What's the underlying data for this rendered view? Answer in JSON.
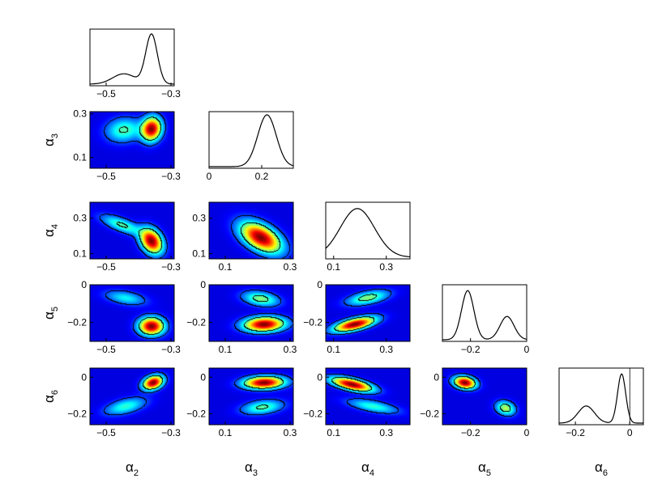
{
  "params": [
    {
      "letter": "α",
      "sub": "2"
    },
    {
      "letter": "α",
      "sub": "3"
    },
    {
      "letter": "α",
      "sub": "4"
    },
    {
      "letter": "α",
      "sub": "5"
    },
    {
      "letter": "α",
      "sub": "6"
    }
  ],
  "chart_data": {
    "type": "corner-plot",
    "description_of_panels": "lower-triangle 2D posterior density heatmaps with 1- and 2-sigma contours; diagonal 1D marginal densities",
    "colormap": [
      "#00008f",
      "#0000ff",
      "#00ffff",
      "#ffff00",
      "#ff0000",
      "#800000"
    ],
    "axes": [
      {
        "name": "α2",
        "range": [
          -0.55,
          -0.29
        ],
        "ticks": [
          -0.5,
          -0.3
        ],
        "tick_labels": [
          "−0.5",
          "−0.3"
        ]
      },
      {
        "name": "α3",
        "range": [
          0.05,
          0.31
        ],
        "ticks": [
          0.1,
          0.3
        ],
        "tick_labels": [
          "0.1",
          "0.3"
        ],
        "diag_range": [
          0.0,
          0.32
        ],
        "diag_ticks": [
          0,
          0.2
        ],
        "diag_tick_labels": [
          "0",
          "0.2"
        ]
      },
      {
        "name": "α4",
        "range": [
          0.07,
          0.39
        ],
        "ticks": [
          0.1,
          0.3
        ],
        "tick_labels": [
          "0.1",
          "0.3"
        ]
      },
      {
        "name": "α5",
        "range": [
          -0.3,
          0.0
        ],
        "ticks": [
          -0.2,
          0
        ],
        "tick_labels": [
          "−0.2",
          "0"
        ]
      },
      {
        "name": "α6",
        "range": [
          -0.26,
          0.05
        ],
        "ticks": [
          -0.2,
          0
        ],
        "tick_labels": [
          "−0.2",
          "0"
        ]
      }
    ],
    "marginals": [
      {
        "param": "α2",
        "modes": [
          {
            "x": -0.36,
            "height": 0.96,
            "width": 0.018
          },
          {
            "x": -0.445,
            "height": 0.2,
            "width": 0.035
          }
        ],
        "vline": null
      },
      {
        "param": "α3",
        "modes": [
          {
            "x": 0.22,
            "height": 1.0,
            "width": 0.035
          }
        ],
        "vline": null
      },
      {
        "param": "α4",
        "modes": [
          {
            "x": 0.19,
            "height": 0.94,
            "width": 0.065
          }
        ],
        "vline": null
      },
      {
        "param": "α5",
        "modes": [
          {
            "x": -0.21,
            "height": 0.95,
            "width": 0.022
          },
          {
            "x": -0.07,
            "height": 0.45,
            "width": 0.025
          }
        ],
        "vline": null
      },
      {
        "param": "α6",
        "modes": [
          {
            "x": -0.03,
            "height": 0.95,
            "width": 0.015
          },
          {
            "x": -0.16,
            "height": 0.33,
            "width": 0.03
          }
        ],
        "vline": 0.0
      }
    ],
    "joint_modes": [
      {
        "x": "α2",
        "y": "α3",
        "modes": [
          {
            "mx": -0.36,
            "my": 0.23,
            "sx": 0.02,
            "sy": 0.035,
            "rho": 0.1,
            "w": 1.0
          },
          {
            "mx": -0.445,
            "my": 0.225,
            "sx": 0.035,
            "sy": 0.035,
            "rho": 0.1,
            "w": 0.35
          }
        ]
      },
      {
        "x": "α2",
        "y": "α4",
        "modes": [
          {
            "mx": -0.36,
            "my": 0.17,
            "sx": 0.022,
            "sy": 0.045,
            "rho": -0.3,
            "w": 1.0
          },
          {
            "mx": -0.45,
            "my": 0.26,
            "sx": 0.04,
            "sy": 0.035,
            "rho": -0.7,
            "w": 0.35
          }
        ]
      },
      {
        "x": "α2",
        "y": "α5",
        "modes": [
          {
            "mx": -0.36,
            "my": -0.22,
            "sx": 0.025,
            "sy": 0.03,
            "rho": 0.0,
            "w": 1.0
          },
          {
            "mx": -0.44,
            "my": -0.07,
            "sx": 0.04,
            "sy": 0.025,
            "rho": -0.4,
            "w": 0.25
          }
        ]
      },
      {
        "x": "α2",
        "y": "α6",
        "modes": [
          {
            "mx": -0.355,
            "my": -0.03,
            "sx": 0.02,
            "sy": 0.025,
            "rho": 0.3,
            "w": 1.0
          },
          {
            "mx": -0.44,
            "my": -0.16,
            "sx": 0.04,
            "sy": 0.03,
            "rho": 0.5,
            "w": 0.3
          }
        ]
      },
      {
        "x": "α3",
        "y": "α4",
        "modes": [
          {
            "mx": 0.21,
            "my": 0.19,
            "sx": 0.04,
            "sy": 0.055,
            "rho": -0.5,
            "w": 1.0
          }
        ]
      },
      {
        "x": "α3",
        "y": "α5",
        "modes": [
          {
            "mx": 0.22,
            "my": -0.21,
            "sx": 0.04,
            "sy": 0.025,
            "rho": 0.1,
            "w": 1.0
          },
          {
            "mx": 0.21,
            "my": -0.075,
            "sx": 0.035,
            "sy": 0.025,
            "rho": -0.3,
            "w": 0.4
          }
        ]
      },
      {
        "x": "α3",
        "y": "α6",
        "modes": [
          {
            "mx": 0.22,
            "my": -0.03,
            "sx": 0.04,
            "sy": 0.022,
            "rho": 0.1,
            "w": 1.0
          },
          {
            "mx": 0.215,
            "my": -0.165,
            "sx": 0.04,
            "sy": 0.025,
            "rho": 0.3,
            "w": 0.35
          }
        ]
      },
      {
        "x": "α4",
        "y": "α5",
        "modes": [
          {
            "mx": 0.18,
            "my": -0.21,
            "sx": 0.05,
            "sy": 0.025,
            "rho": 0.6,
            "w": 1.0
          },
          {
            "mx": 0.23,
            "my": -0.07,
            "sx": 0.05,
            "sy": 0.025,
            "rho": 0.5,
            "w": 0.4
          }
        ]
      },
      {
        "x": "α4",
        "y": "α6",
        "modes": [
          {
            "mx": 0.17,
            "my": -0.04,
            "sx": 0.05,
            "sy": 0.025,
            "rho": -0.6,
            "w": 1.0
          },
          {
            "mx": 0.25,
            "my": -0.16,
            "sx": 0.06,
            "sy": 0.025,
            "rho": -0.6,
            "w": 0.3
          }
        ]
      },
      {
        "x": "α5",
        "y": "α6",
        "modes": [
          {
            "mx": -0.22,
            "my": -0.03,
            "sx": 0.025,
            "sy": 0.022,
            "rho": -0.2,
            "w": 1.0
          },
          {
            "mx": -0.075,
            "my": -0.17,
            "sx": 0.022,
            "sy": 0.025,
            "rho": -0.2,
            "w": 0.45
          }
        ]
      }
    ]
  }
}
